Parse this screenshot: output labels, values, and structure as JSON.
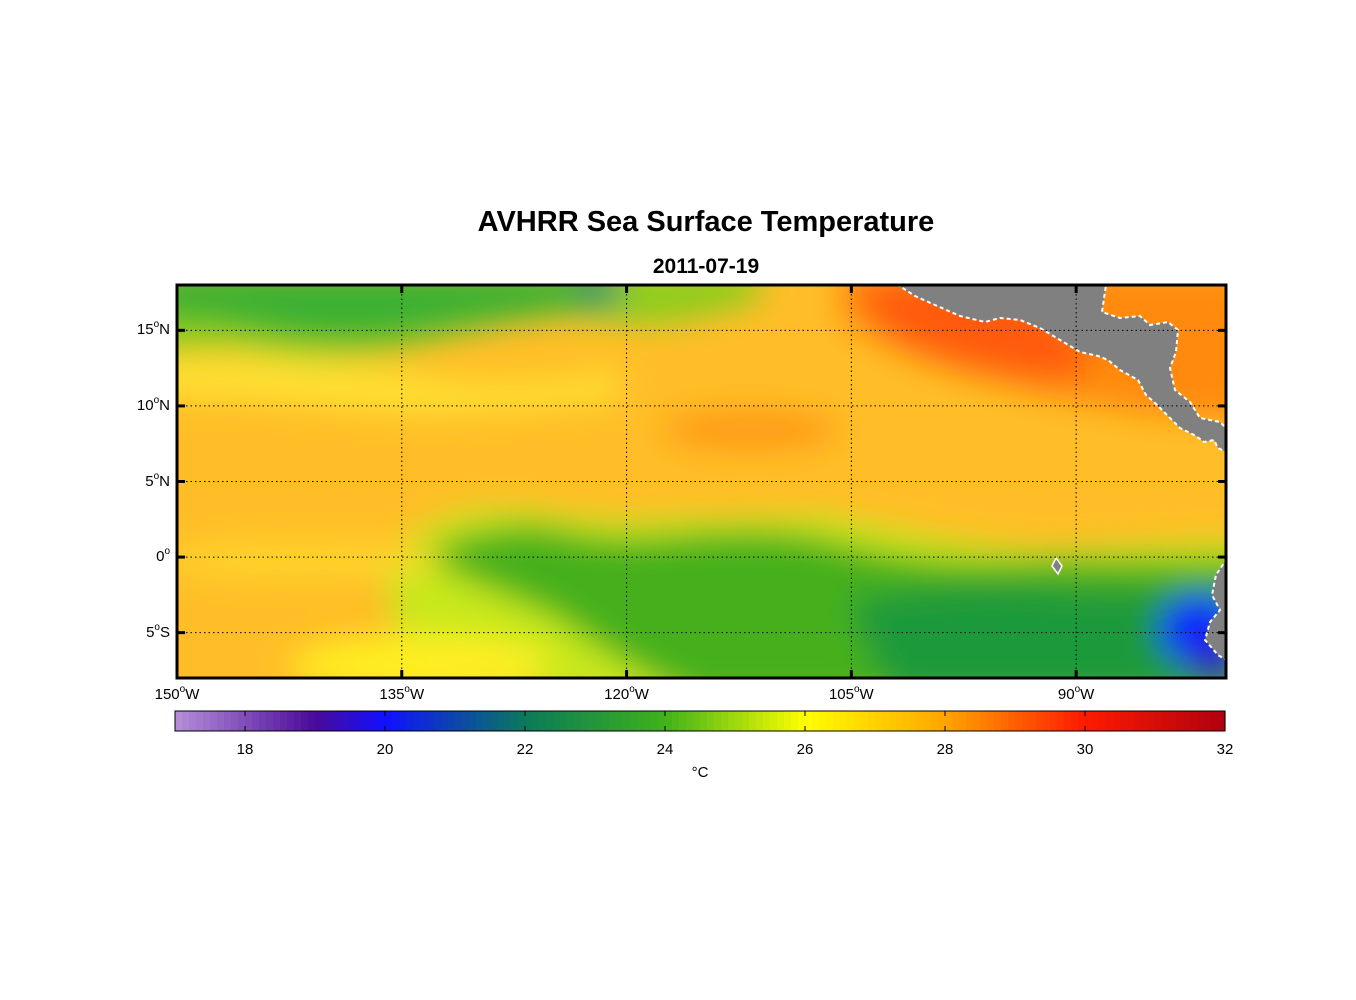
{
  "title": "AVHRR Sea Surface Temperature",
  "subtitle": "2011-07-19",
  "map": {
    "lon_range": [
      -150,
      -80
    ],
    "lat_range": [
      -8,
      18
    ],
    "lon_ticks": [
      {
        "value": -150,
        "deg": "150",
        "hemi": "W"
      },
      {
        "value": -135,
        "deg": "135",
        "hemi": "W"
      },
      {
        "value": -120,
        "deg": "120",
        "hemi": "W"
      },
      {
        "value": -105,
        "deg": "105",
        "hemi": "W"
      },
      {
        "value": -90,
        "deg": "90",
        "hemi": "W"
      }
    ],
    "lat_ticks": [
      {
        "value": 15,
        "deg": "15",
        "hemi": "N"
      },
      {
        "value": 10,
        "deg": "10",
        "hemi": "N"
      },
      {
        "value": 5,
        "deg": "5",
        "hemi": "N"
      },
      {
        "value": 0,
        "deg": "0",
        "hemi": ""
      },
      {
        "value": -5,
        "deg": "5",
        "hemi": "S"
      }
    ],
    "land_color": "#808080",
    "grid": "dotted"
  },
  "colorbar": {
    "min": 17,
    "max": 32,
    "ticks": [
      "18",
      "20",
      "22",
      "24",
      "26",
      "28",
      "30",
      "32"
    ],
    "unit": "°C",
    "stops": [
      {
        "t": 17,
        "c": "#b590d8"
      },
      {
        "t": 19,
        "c": "#4a0a9a"
      },
      {
        "t": 20,
        "c": "#1010ff"
      },
      {
        "t": 22,
        "c": "#0a7a5a"
      },
      {
        "t": 24,
        "c": "#3fb21a"
      },
      {
        "t": 26,
        "c": "#ffff00"
      },
      {
        "t": 28,
        "c": "#ffa500"
      },
      {
        "t": 30,
        "c": "#ff1a00"
      },
      {
        "t": 32,
        "c": "#b00010"
      }
    ]
  }
}
